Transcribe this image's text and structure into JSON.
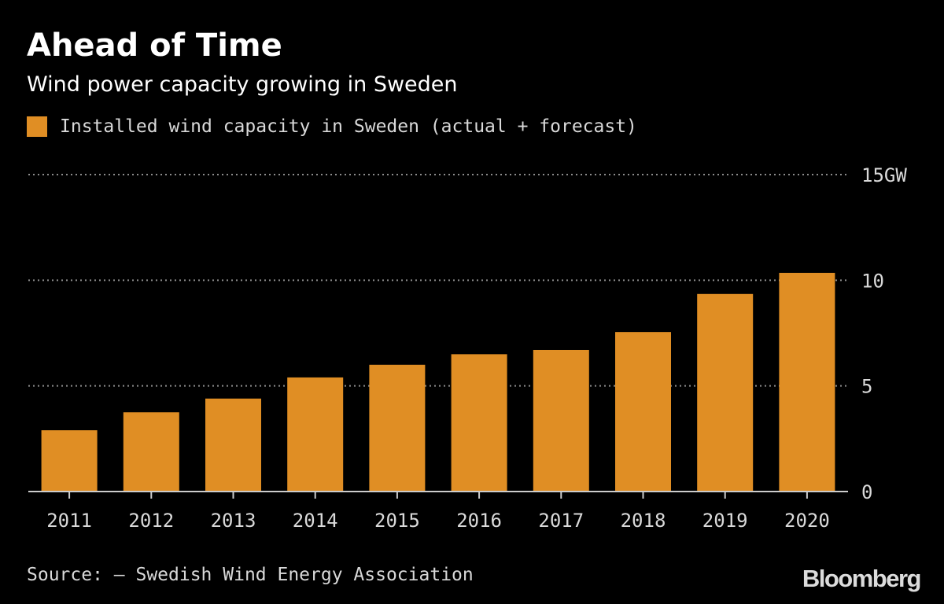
{
  "header": {
    "title": "Ahead of Time",
    "subtitle": "Wind power capacity growing in Sweden"
  },
  "legend": {
    "label": "Installed wind capacity in Sweden (actual + forecast)"
  },
  "colors": {
    "bar": "#e08e24",
    "background": "#000000",
    "grid": "#8c8c8c",
    "axis": "#cccccc",
    "text": "#ffffff",
    "muted_text": "#d9d9d9"
  },
  "chart_data": {
    "type": "bar",
    "title": "Ahead of Time",
    "subtitle": "Wind power capacity growing in Sweden",
    "xlabel": "",
    "ylabel": "",
    "categories": [
      "2011",
      "2012",
      "2013",
      "2014",
      "2015",
      "2016",
      "2017",
      "2018",
      "2019",
      "2020"
    ],
    "series": [
      {
        "name": "Installed wind capacity in Sweden (actual + forecast)",
        "values": [
          2.9,
          3.75,
          4.4,
          5.4,
          6.0,
          6.5,
          6.7,
          7.55,
          9.35,
          10.35
        ]
      }
    ],
    "ylim": [
      0,
      15
    ],
    "yticks": [
      0,
      5,
      10,
      15
    ],
    "ytick_labels": [
      "0",
      "5",
      "10",
      "15GW"
    ],
    "grid": true,
    "grid_style": "dotted",
    "y_axis_side": "right",
    "legend_position": "top-left"
  },
  "footer": {
    "source": "Source: – Swedish Wind Energy Association",
    "brand": "Bloomberg"
  }
}
